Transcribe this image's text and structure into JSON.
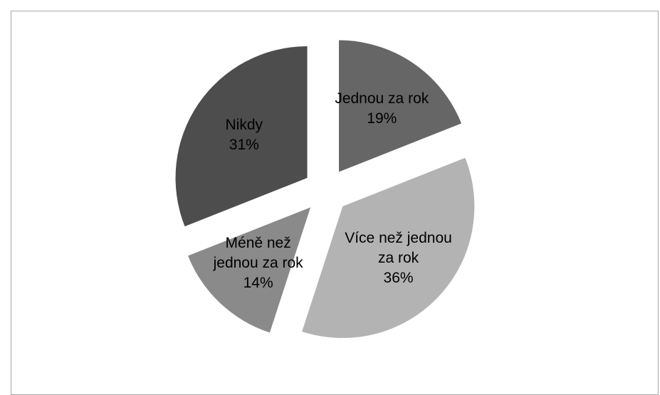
{
  "chart_data": {
    "type": "pie",
    "categories": [
      "Jednou za rok",
      "Více než jednou za rok",
      "Méně než jednou za rok",
      "Nikdy"
    ],
    "values": [
      19,
      36,
      14,
      31
    ],
    "value_labels": [
      "19%",
      "36%",
      "14%",
      "31%"
    ],
    "colors": [
      "#666666",
      "#b3b3b3",
      "#8a8a8a",
      "#4d4d4d"
    ]
  }
}
